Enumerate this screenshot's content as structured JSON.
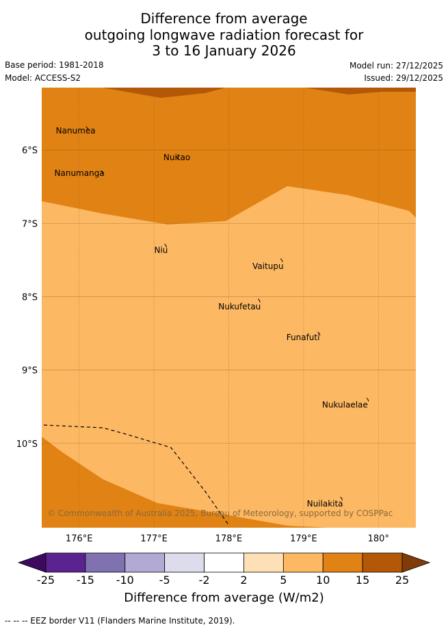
{
  "title": {
    "line1": "Difference from average",
    "line2": "outgoing longwave radiation forecast for",
    "line3": "3 to 16 January 2026"
  },
  "meta": {
    "base_period": "Base period: 1981-2018",
    "model": "Model: ACCESS-S2",
    "model_run": "Model run: 27/12/2025",
    "issued": "Issued: 29/12/2025"
  },
  "map": {
    "lon_range_degE": [
      175.5,
      180.5
    ],
    "lat_range_degS": [
      5.15,
      11.15
    ],
    "lat_labels": [
      "6°S",
      "7°S",
      "8°S",
      "9°S",
      "10°S"
    ],
    "lon_labels": [
      "176°E",
      "177°E",
      "178°E",
      "179°E",
      "180°"
    ],
    "places": [
      {
        "name": "Nanumea",
        "lon": 176.1,
        "lat": -5.7
      },
      {
        "name": "Nuitao",
        "lon": 177.3,
        "lat": -6.1
      },
      {
        "name": "Nanumanga",
        "lon": 176.3,
        "lat": -6.3
      },
      {
        "name": "Niu",
        "lon": 177.15,
        "lat": -7.3
      },
      {
        "name": "Vaitupu",
        "lon": 178.7,
        "lat": -7.5
      },
      {
        "name": "Nukufetau",
        "lon": 178.4,
        "lat": -8.05
      },
      {
        "name": "Funafuti",
        "lon": 179.2,
        "lat": -8.5
      },
      {
        "name": "Nukulaelae",
        "lon": 179.85,
        "lat": -9.4
      },
      {
        "name": "Nuilakita",
        "lon": 179.5,
        "lat": -10.75
      }
    ],
    "copyright": "© Commonwealth of Australia 2025, Bureau of Meteorology, supported by COSPPac"
  },
  "colorbar": {
    "ticks": [
      "-25",
      "-15",
      "-10",
      "-5",
      "-2",
      "2",
      "5",
      "10",
      "15",
      "25"
    ],
    "colors": [
      "#3d0a5e",
      "#5a2390",
      "#8072b0",
      "#b2aad4",
      "#dcdcec",
      "#ffffff",
      "#fee0b6",
      "#fdb863",
      "#e08214",
      "#b35806",
      "#7f3b08"
    ],
    "label": "Difference from average (W/m2)"
  },
  "legend": {
    "eez": "-- -- -- EEZ border V11 (Flanders Marine Institute, 2019)."
  }
}
